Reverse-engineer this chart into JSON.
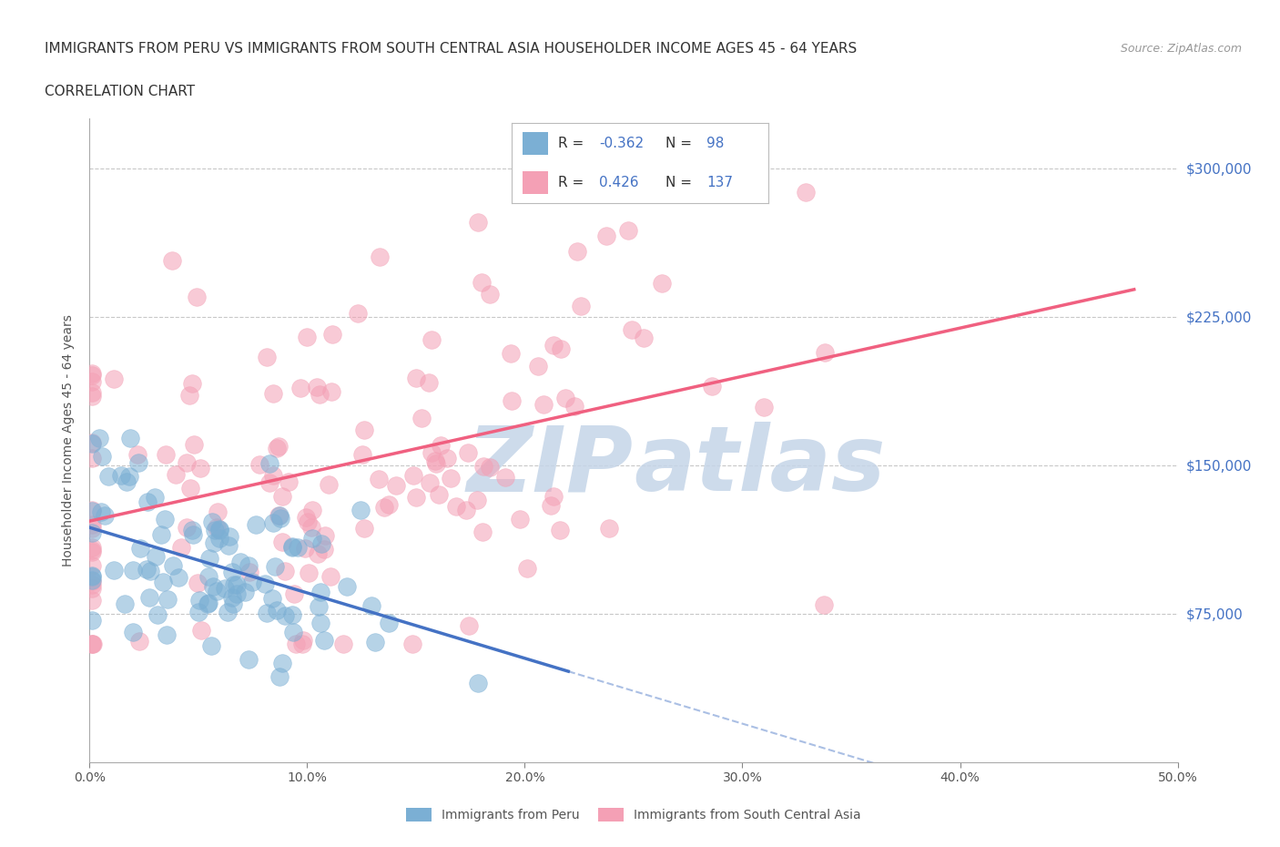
{
  "title_line1": "IMMIGRANTS FROM PERU VS IMMIGRANTS FROM SOUTH CENTRAL ASIA HOUSEHOLDER INCOME AGES 45 - 64 YEARS",
  "title_line2": "CORRELATION CHART",
  "source_text": "Source: ZipAtlas.com",
  "ylabel": "Householder Income Ages 45 - 64 years",
  "xlim": [
    0.0,
    0.5
  ],
  "ylim": [
    0,
    325000
  ],
  "xtick_labels": [
    "0.0%",
    "10.0%",
    "20.0%",
    "30.0%",
    "40.0%",
    "50.0%"
  ],
  "xtick_values": [
    0.0,
    0.1,
    0.2,
    0.3,
    0.4,
    0.5
  ],
  "ytick_values": [
    75000,
    150000,
    225000,
    300000
  ],
  "ytick_labels": [
    "$75,000",
    "$150,000",
    "$225,000",
    "$300,000"
  ],
  "blue_R": -0.362,
  "blue_N": 98,
  "pink_R": 0.426,
  "pink_N": 137,
  "blue_color": "#7bafd4",
  "pink_color": "#f4a0b5",
  "blue_line_color": "#4472c4",
  "pink_line_color": "#f06080",
  "grid_color": "#c8c8c8",
  "watermark_color": "#c5d5e8",
  "legend_color": "#4472c4",
  "title_fontsize": 11,
  "subtitle_fontsize": 11,
  "axis_label_fontsize": 10,
  "tick_fontsize": 10,
  "background_color": "#ffffff"
}
